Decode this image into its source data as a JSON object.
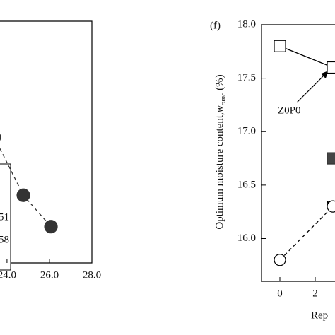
{
  "chart_data": [
    {
      "type": "line",
      "xlim": [
        23.67,
        28.0
      ],
      "xticks": [
        {
          "value": 24,
          "label": "24.0"
        },
        {
          "value": 26,
          "label": "26.0"
        },
        {
          "value": 28,
          "label": "28.0"
        }
      ],
      "ylim": [
        0,
        1
      ],
      "series": [
        {
          "color": "#333333",
          "marker": "circle",
          "fill": "#333333",
          "line": "dashed",
          "x": [
            23.4,
            24.77,
            26.07
          ],
          "values": [
            0.52,
            0.28,
            0.15
          ]
        }
      ],
      "legend_texts": [
        "51",
        "58"
      ]
    },
    {
      "type": "line",
      "panel_label": "(f)",
      "ylabel": "Optimum moisture content,",
      "ylabel_symbol": "w",
      "ylabel_sub": "omc",
      "ylabel_unit": "(%)",
      "xlabel": "Rep",
      "xlim": [
        -1.04,
        3.12
      ],
      "xticks": [
        0,
        2
      ],
      "ylim": [
        15.6,
        18.0
      ],
      "yticks": [
        {
          "value": 16,
          "label": "16.0"
        },
        16.5,
        {
          "value": 17,
          "label": "17.0"
        },
        17.5,
        {
          "value": 18,
          "label": "18.0"
        }
      ],
      "series": [
        {
          "color": "#000000",
          "marker": "square",
          "fill": "#ffffff",
          "line": "solid",
          "x": [
            0,
            3
          ],
          "values": [
            17.8,
            17.6
          ]
        },
        {
          "color": "#000000",
          "marker": "circle",
          "fill": "#ffffff",
          "line": "dashed",
          "x": [
            0,
            3
          ],
          "values": [
            15.8,
            16.3
          ]
        },
        {
          "color": "#333333",
          "marker": "square",
          "fill": "#444444",
          "line": "none",
          "x": [
            3
          ],
          "values": [
            16.75
          ]
        }
      ],
      "annotations": [
        {
          "text": "Z0P0"
        }
      ]
    }
  ]
}
